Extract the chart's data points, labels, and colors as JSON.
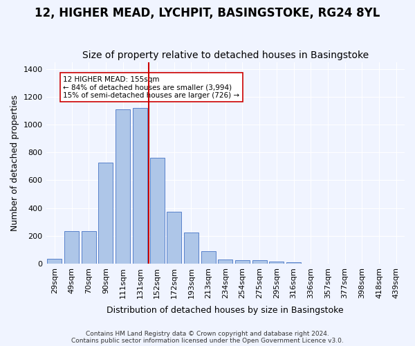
{
  "title": "12, HIGHER MEAD, LYCHPIT, BASINGSTOKE, RG24 8YL",
  "subtitle": "Size of property relative to detached houses in Basingstoke",
  "xlabel": "Distribution of detached houses by size in Basingstoke",
  "ylabel": "Number of detached properties",
  "categories": [
    "29sqm",
    "49sqm",
    "70sqm",
    "90sqm",
    "111sqm",
    "131sqm",
    "152sqm",
    "172sqm",
    "193sqm",
    "213sqm",
    "234sqm",
    "254sqm",
    "275sqm",
    "295sqm",
    "316sqm",
    "336sqm",
    "357sqm",
    "377sqm",
    "398sqm",
    "418sqm",
    "439sqm"
  ],
  "values": [
    35,
    235,
    235,
    725,
    1110,
    1120,
    760,
    375,
    225,
    90,
    30,
    25,
    25,
    15,
    10,
    0,
    0,
    0,
    0,
    0,
    0
  ],
  "bar_color": "#aec6e8",
  "bar_edge_color": "#4472c4",
  "vline_x_index": 6,
  "vline_color": "#cc0000",
  "annotation_text": "12 HIGHER MEAD: 155sqm\n← 84% of detached houses are smaller (3,994)\n15% of semi-detached houses are larger (726) →",
  "annotation_box_color": "#ffffff",
  "annotation_box_edge": "#cc0000",
  "ylim": [
    0,
    1450
  ],
  "yticks": [
    0,
    200,
    400,
    600,
    800,
    1000,
    1200,
    1400
  ],
  "footer1": "Contains HM Land Registry data © Crown copyright and database right 2024.",
  "footer2": "Contains public sector information licensed under the Open Government Licence v3.0.",
  "background_color": "#f0f4ff",
  "grid_color": "#ffffff",
  "title_fontsize": 12,
  "subtitle_fontsize": 10,
  "tick_fontsize": 8,
  "ylabel_fontsize": 9,
  "xlabel_fontsize": 9
}
